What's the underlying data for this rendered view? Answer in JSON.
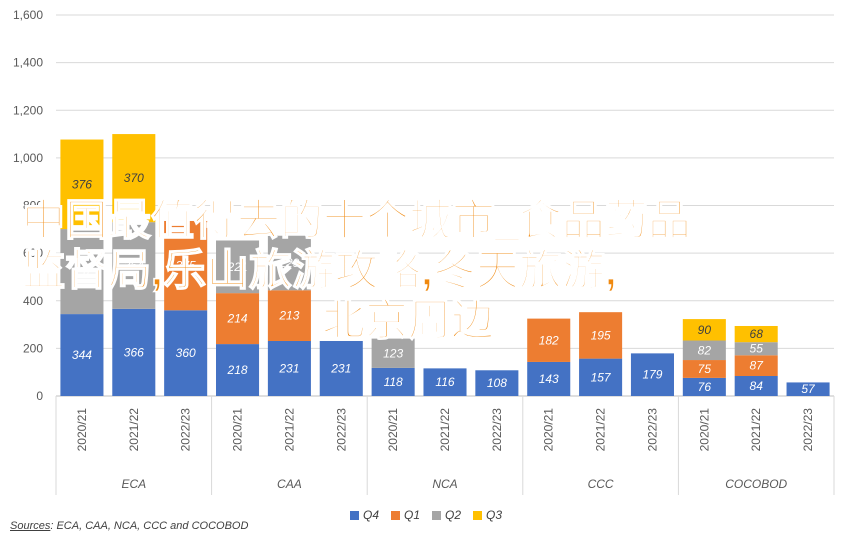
{
  "chart_data": {
    "type": "bar",
    "stacked": true,
    "y_ticks": [
      "0",
      "200",
      "400",
      "600",
      "800",
      "1,000",
      "1,200",
      "1,400",
      "1,600"
    ],
    "ylim": [
      0,
      1600
    ],
    "grid": true,
    "groups": [
      {
        "name": "ECA",
        "categories": [
          "2020/21",
          "2021/22",
          "2022/23"
        ]
      },
      {
        "name": "CAA",
        "categories": [
          "2020/21",
          "2021/22",
          "2022/23"
        ]
      },
      {
        "name": "NCA",
        "categories": [
          "2020/21",
          "2021/22",
          "2022/23"
        ]
      },
      {
        "name": "CCC",
        "categories": [
          "2020/21",
          "2021/22",
          "2022/23"
        ]
      },
      {
        "name": "COCOBOD",
        "categories": [
          "2020/21",
          "2021/22",
          "2022/23"
        ]
      }
    ],
    "series": [
      {
        "name": "Q4",
        "color": "#4472c4",
        "values": [
          344,
          366,
          360,
          218,
          231,
          231,
          118,
          116,
          108,
          143,
          157,
          179,
          76,
          84,
          57
        ]
      },
      {
        "name": "Q1",
        "color": "#ed7d31",
        "values": [
          null,
          null,
          375,
          214,
          213,
          null,
          null,
          null,
          null,
          182,
          195,
          null,
          75,
          87,
          null
        ]
      },
      {
        "name": "Q2",
        "color": "#a5a5a5",
        "values": [
          357,
          364,
          null,
          221,
          229,
          null,
          123,
          null,
          null,
          null,
          null,
          null,
          82,
          55,
          null
        ]
      },
      {
        "name": "Q3",
        "color": "#ffc000",
        "values": [
          376,
          370,
          null,
          null,
          null,
          null,
          null,
          null,
          null,
          null,
          null,
          null,
          90,
          68,
          null
        ]
      }
    ],
    "legend_position": "bottom"
  },
  "overlay": {
    "line1": "中国最值得去的十个城市_食品药品",
    "line2": "监督局,乐山旅游攻略,冬天旅游,",
    "line3": "北京周边"
  },
  "source": {
    "label": "Sources",
    "text": ": ECA, CAA, NCA, CCC and COCOBOD"
  }
}
